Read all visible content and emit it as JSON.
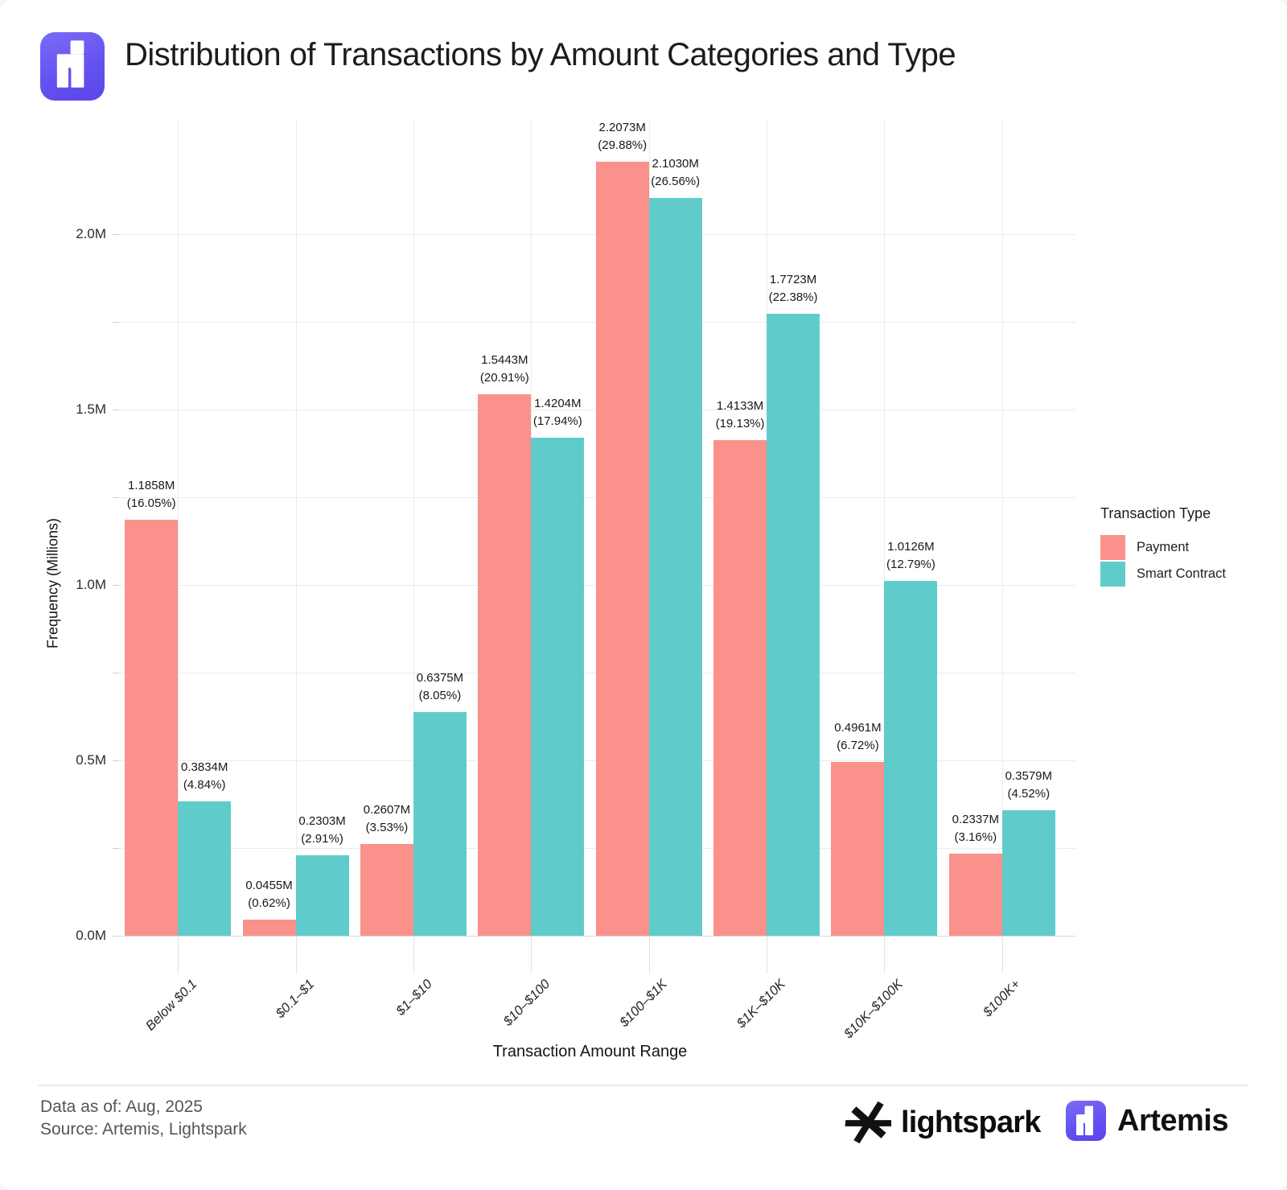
{
  "chart_data": {
    "type": "bar",
    "title": "Distribution of Transactions by Amount Categories and Type",
    "categories": [
      "Below $0.1",
      "$0.1–$1",
      "$1–$10",
      "$10–$100",
      "$100–$1K",
      "$1K–$10K",
      "$10K–$100K",
      "$100K+"
    ],
    "series": [
      {
        "name": "Payment",
        "color": "#FA918A",
        "values_millions": [
          1.1858,
          0.0455,
          0.2607,
          1.5443,
          2.2073,
          1.4133,
          0.4961,
          0.2337
        ],
        "percents": [
          16.05,
          0.62,
          3.53,
          20.91,
          29.88,
          19.13,
          6.72,
          3.16
        ]
      },
      {
        "name": "Smart Contract",
        "color": "#5FCCCB",
        "values_millions": [
          0.3834,
          0.2303,
          0.6375,
          1.4204,
          2.103,
          1.7723,
          1.0126,
          0.3579
        ],
        "percents": [
          4.84,
          2.91,
          8.05,
          17.94,
          26.56,
          22.38,
          12.79,
          4.52
        ]
      }
    ],
    "xlabel": "Transaction Amount Range",
    "ylabel": "Frequency (Millions)",
    "y_tick_values_millions": [
      0.0,
      0.5,
      1.0,
      1.5,
      2.0
    ],
    "y_gridline_step_millions": 0.25,
    "ylim_millions": [
      0,
      2.33
    ],
    "grid": true,
    "legend": {
      "title": "Transaction Type",
      "position": "right"
    }
  },
  "footer": {
    "data_as_of": "Data as of: Aug, 2025",
    "source": "Source: Artemis, Lightspark",
    "lightspark_logo_text": "lightspark",
    "artemis_logo_text": "Artemis"
  }
}
